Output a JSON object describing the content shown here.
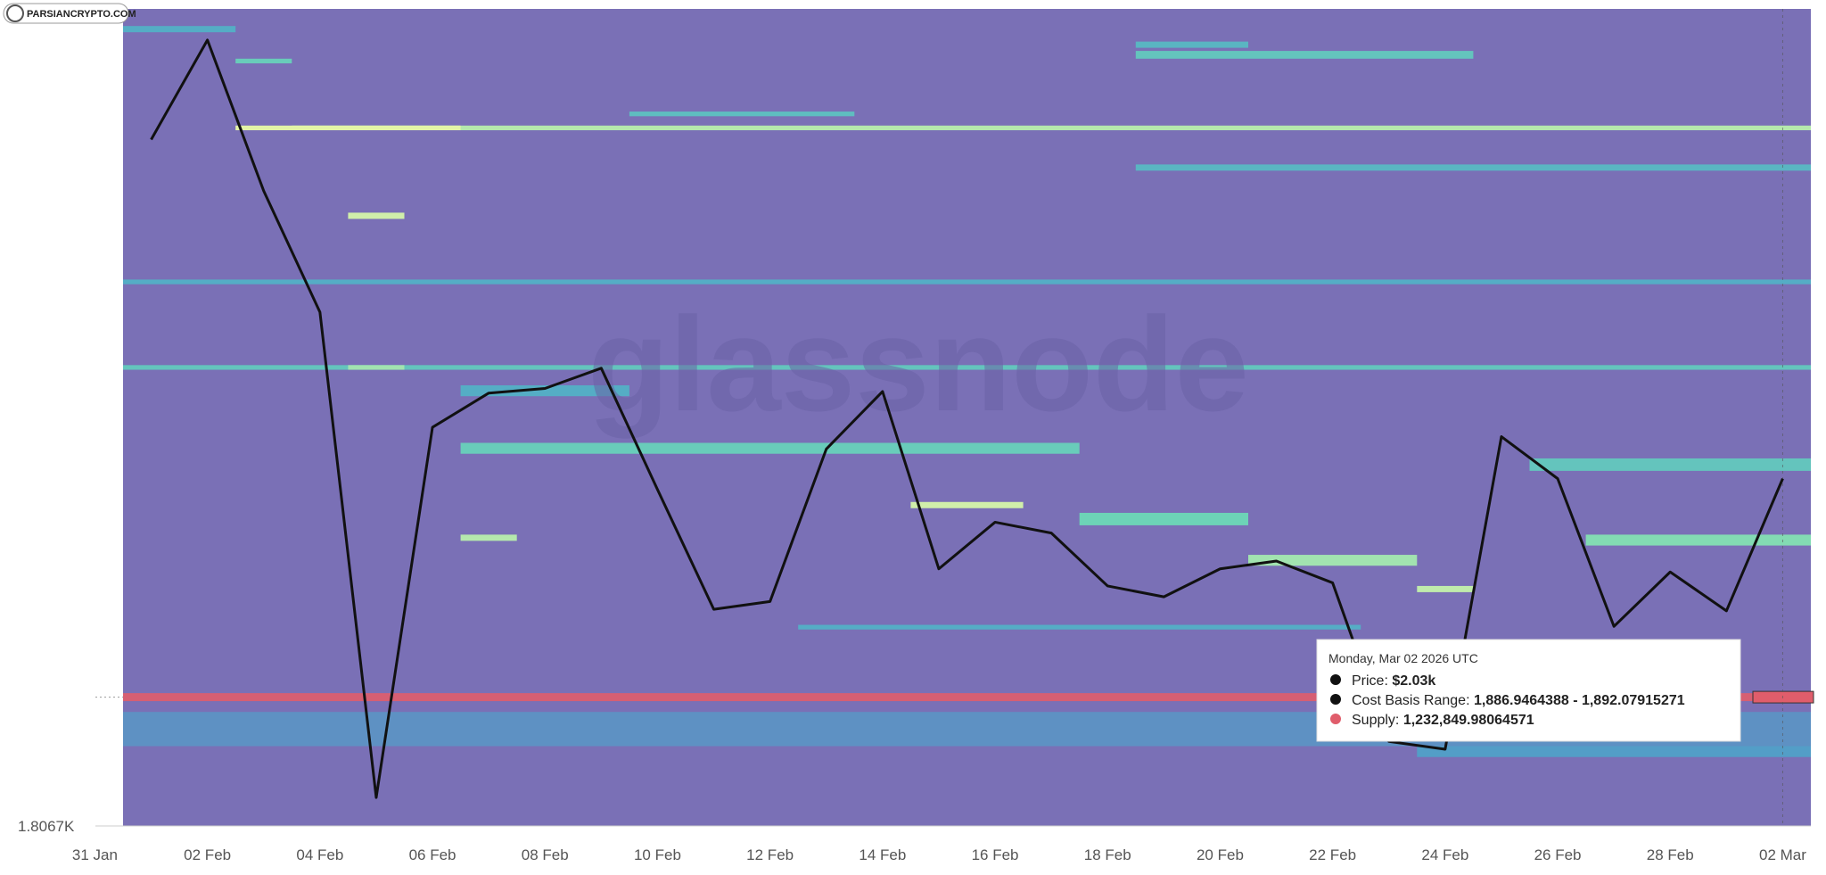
{
  "chart_data": {
    "type": "line",
    "watermark": "glassnode",
    "logo": "PARSIANCRYPTO.COM",
    "x": [
      "2026-02-01",
      "2026-02-02",
      "2026-02-03",
      "2026-02-04",
      "2026-02-05",
      "2026-02-06",
      "2026-02-07",
      "2026-02-08",
      "2026-02-09",
      "2026-02-10",
      "2026-02-11",
      "2026-02-12",
      "2026-02-13",
      "2026-02-14",
      "2026-02-15",
      "2026-02-16",
      "2026-02-17",
      "2026-02-18",
      "2026-02-19",
      "2026-02-20",
      "2026-02-21",
      "2026-02-22",
      "2026-02-23",
      "2026-02-24",
      "2026-02-25",
      "2026-02-26",
      "2026-02-27",
      "2026-02-28",
      "2026-03-01",
      "2026-03-02"
    ],
    "series": [
      {
        "name": "Price",
        "color": "#111111",
        "values": [
          2248,
          2312,
          2215,
          2137,
          1825,
          2063,
          2085,
          2088,
          2101,
          2023,
          1946,
          1951,
          2049,
          2086,
          1972,
          2002,
          1995,
          1961,
          1954,
          1972,
          1977,
          1963,
          1861,
          1856,
          2057,
          2030,
          1935,
          1970,
          1945,
          2030
        ]
      }
    ],
    "xlim": [
      "2026-01-31T12:00:00Z",
      "2026-03-02T12:00:00Z"
    ],
    "xticks": [
      {
        "value": "2026-01-31",
        "label": "31 Jan"
      },
      {
        "value": "2026-02-02",
        "label": "02 Feb"
      },
      {
        "value": "2026-02-04",
        "label": "04 Feb"
      },
      {
        "value": "2026-02-06",
        "label": "06 Feb"
      },
      {
        "value": "2026-02-08",
        "label": "08 Feb"
      },
      {
        "value": "2026-02-10",
        "label": "10 Feb"
      },
      {
        "value": "2026-02-12",
        "label": "12 Feb"
      },
      {
        "value": "2026-02-14",
        "label": "14 Feb"
      },
      {
        "value": "2026-02-16",
        "label": "16 Feb"
      },
      {
        "value": "2026-02-18",
        "label": "18 Feb"
      },
      {
        "value": "2026-02-20",
        "label": "20 Feb"
      },
      {
        "value": "2026-02-22",
        "label": "22 Feb"
      },
      {
        "value": "2026-02-24",
        "label": "24 Feb"
      },
      {
        "value": "2026-02-26",
        "label": "26 Feb"
      },
      {
        "value": "2026-02-28",
        "label": "28 Feb"
      },
      {
        "value": "2026-03-02",
        "label": "02 Mar"
      }
    ],
    "ylim": [
      1806.7,
      2332
    ],
    "yticks": [
      {
        "value": 1806.7,
        "label": "1.8067K"
      }
    ],
    "colorscale": [
      "#7b6fb8",
      "#4fa3c9",
      "#6fd6b6",
      "#eef7a6"
    ],
    "background": "#7a70b6",
    "bands": [
      {
        "from": "2026-01-31T12:00:00Z",
        "to": "2026-03-02T12:00:00Z",
        "low": 2100,
        "high": 2103,
        "intensity": 0.55
      },
      {
        "from": "2026-02-04T12:00:00Z",
        "to": "2026-02-05T12:00:00Z",
        "low": 2100,
        "high": 2103,
        "intensity": 0.8
      },
      {
        "from": "2026-01-31T12:00:00Z",
        "to": "2026-03-02T12:00:00Z",
        "low": 2155,
        "high": 2158,
        "intensity": 0.4
      },
      {
        "from": "2026-02-03T12:00:00Z",
        "to": "2026-03-02T12:00:00Z",
        "low": 2254,
        "high": 2257,
        "intensity": 0.85
      },
      {
        "from": "2026-02-02T12:00:00Z",
        "to": "2026-02-06T12:00:00Z",
        "low": 2254,
        "high": 2257,
        "intensity": 0.97
      },
      {
        "from": "2026-02-04T12:00:00Z",
        "to": "2026-02-05T12:00:00Z",
        "low": 2197,
        "high": 2201,
        "intensity": 0.92
      },
      {
        "from": "2026-02-06T12:00:00Z",
        "to": "2026-02-17T12:00:00Z",
        "low": 2046,
        "high": 2053,
        "intensity": 0.6
      },
      {
        "from": "2026-02-14T12:00:00Z",
        "to": "2026-02-16T12:00:00Z",
        "low": 2011,
        "high": 2015,
        "intensity": 0.92
      },
      {
        "from": "2026-02-06T12:00:00Z",
        "to": "2026-02-07T12:00:00Z",
        "low": 1990,
        "high": 1994,
        "intensity": 0.85
      },
      {
        "from": "2026-02-20T12:00:00Z",
        "to": "2026-02-23T12:00:00Z",
        "low": 1974,
        "high": 1981,
        "intensity": 0.8
      },
      {
        "from": "2026-02-23T12:00:00Z",
        "to": "2026-02-24T12:00:00Z",
        "low": 1957,
        "high": 1961,
        "intensity": 0.88
      },
      {
        "from": "2026-02-26T12:00:00Z",
        "to": "2026-03-02T12:00:00Z",
        "low": 1987,
        "high": 1994,
        "intensity": 0.72
      },
      {
        "from": "2026-02-09T12:00:00Z",
        "to": "2026-02-13T12:00:00Z",
        "low": 2263,
        "high": 2266,
        "intensity": 0.5
      },
      {
        "from": "2026-02-18T12:00:00Z",
        "to": "2026-02-24T12:00:00Z",
        "low": 2300,
        "high": 2305,
        "intensity": 0.55
      },
      {
        "from": "2026-02-18T12:00:00Z",
        "to": "2026-02-20T12:00:00Z",
        "low": 2307,
        "high": 2311,
        "intensity": 0.45
      },
      {
        "from": "2026-02-18T12:00:00Z",
        "to": "2026-03-02T12:00:00Z",
        "low": 2228,
        "high": 2232,
        "intensity": 0.45
      },
      {
        "from": "2026-01-31T12:00:00Z",
        "to": "2026-02-02T12:00:00Z",
        "low": 2317,
        "high": 2321,
        "intensity": 0.4
      },
      {
        "from": "2026-02-02T12:00:00Z",
        "to": "2026-02-03T12:00:00Z",
        "low": 2297,
        "high": 2300,
        "intensity": 0.6
      },
      {
        "from": "2026-02-25T12:00:00Z",
        "to": "2026-03-02T12:00:00Z",
        "low": 2035,
        "high": 2043,
        "intensity": 0.55
      },
      {
        "from": "2026-02-17T12:00:00Z",
        "to": "2026-02-20T12:00:00Z",
        "low": 2000,
        "high": 2008,
        "intensity": 0.65
      },
      {
        "from": "2026-02-12T12:00:00Z",
        "to": "2026-02-22T12:00:00Z",
        "low": 1933,
        "high": 1936,
        "intensity": 0.4
      },
      {
        "from": "2026-02-23T12:00:00Z",
        "to": "2026-03-02T12:00:00Z",
        "low": 1851,
        "high": 1873,
        "intensity": 0.3
      },
      {
        "from": "2026-01-31T12:00:00Z",
        "to": "2026-03-02T12:00:00Z",
        "low": 1858,
        "high": 1880,
        "intensity": 0.22
      },
      {
        "from": "2026-02-06T12:00:00Z",
        "to": "2026-02-09T12:00:00Z",
        "low": 2083,
        "high": 2090,
        "intensity": 0.4
      }
    ],
    "highlight": {
      "low": 1886.9464388,
      "high": 1892.07915271,
      "supply": 1232849.98064571,
      "color": "#e05d6b"
    },
    "tooltip": {
      "date": "Monday, Mar 02 2026 UTC",
      "price_name": "Price:",
      "price_label": "$2.03k",
      "range_name": "Cost Basis Range:",
      "range_label": "1,886.9464388 - 1,892.07915271",
      "supply_name": "Supply:",
      "supply_label": "1,232,849.98064571"
    }
  }
}
